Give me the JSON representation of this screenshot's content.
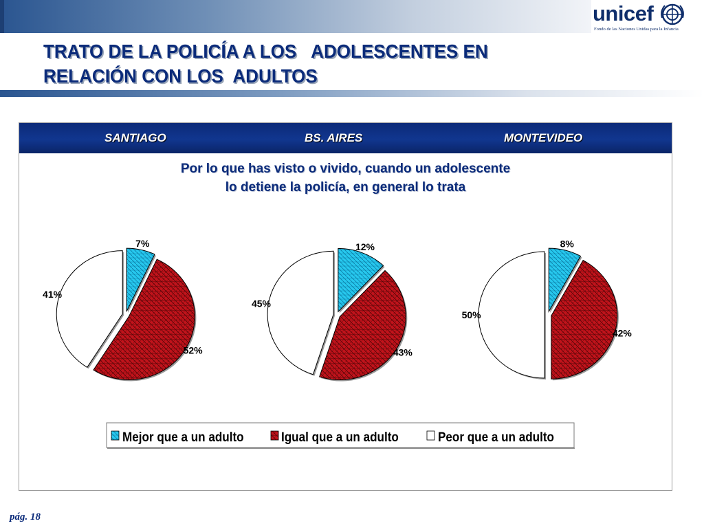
{
  "title": {
    "line1": "TRATO DE LA POLICÍA A LOS   ADOLESCENTES EN",
    "line2": "RELACIÓN CON LOS  ADULTOS"
  },
  "logo": {
    "word": "unicef",
    "subtitle": "Fondo de las Naciones Unidas para la Infancia"
  },
  "cities": [
    "SANTIAGO",
    "BS. AIRES",
    "MONTEVIDEO"
  ],
  "question": {
    "line1": "Por lo que has visto o vivido, cuando un adolescente",
    "line2": "lo detiene la policía, en general lo trata"
  },
  "footer": "pág. 18",
  "colors": {
    "mejor": "#27c8ee",
    "igual": "#c1131b",
    "peor": "#ffffff",
    "title": "#0b2b7a",
    "header": "#0c2a78"
  },
  "chart_data": {
    "type": "pie",
    "categories": [
      "Mejor que a un adulto",
      "Igual que a un adulto",
      "Peor que a un adulto"
    ],
    "legend_position": "bottom",
    "charts": [
      {
        "title": "SANTIAGO",
        "values": [
          7,
          52,
          41
        ],
        "labels": [
          "7%",
          "52%",
          "41%"
        ]
      },
      {
        "title": "BS. AIRES",
        "values": [
          12,
          43,
          45
        ],
        "labels": [
          "12%",
          "43%",
          "45%"
        ]
      },
      {
        "title": "MONTEVIDEO",
        "values": [
          8,
          42,
          50
        ],
        "labels": [
          "8%",
          "42%",
          "50%"
        ]
      }
    ]
  }
}
